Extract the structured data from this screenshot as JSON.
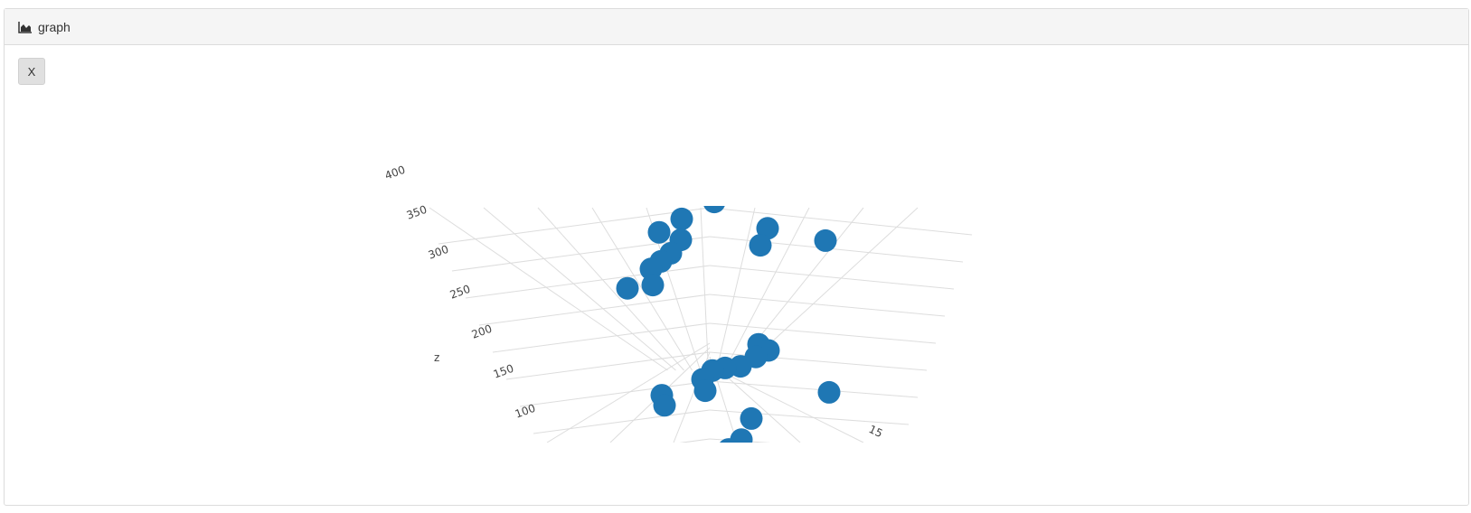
{
  "header": {
    "title": "graph",
    "icon": "area-chart-icon"
  },
  "controls": {
    "close_label": "X"
  },
  "chart_data": {
    "type": "scatter3d",
    "marker_color": "#1f77b4",
    "grid": true,
    "z_axis": {
      "label": "z",
      "ticks": [
        "100",
        "150",
        "200",
        "250",
        "300",
        "350",
        "400"
      ]
    },
    "y_axis": {
      "label": "",
      "ticks": [
        "15"
      ]
    },
    "points": [
      {
        "x": 4,
        "y": 6,
        "z": 410
      },
      {
        "x": 8,
        "y": 7,
        "z": 395
      },
      {
        "x": 5,
        "y": 9,
        "z": 380
      },
      {
        "x": 3,
        "y": 10,
        "z": 365
      },
      {
        "x": 12,
        "y": 8,
        "z": 360
      },
      {
        "x": 11,
        "y": 10,
        "z": 345
      },
      {
        "x": 17,
        "y": 6,
        "z": 330
      },
      {
        "x": 6,
        "y": 4,
        "z": 320
      },
      {
        "x": 5,
        "y": 5,
        "z": 305
      },
      {
        "x": 4,
        "y": 6,
        "z": 298
      },
      {
        "x": 3,
        "y": 7,
        "z": 292
      },
      {
        "x": 2,
        "y": 3,
        "z": 240
      },
      {
        "x": 4,
        "y": 3,
        "z": 245
      },
      {
        "x": 10,
        "y": 14,
        "z": 215
      },
      {
        "x": 11,
        "y": 13,
        "z": 200
      },
      {
        "x": 10,
        "y": 13,
        "z": 190
      },
      {
        "x": 9,
        "y": 12,
        "z": 170
      },
      {
        "x": 8,
        "y": 11,
        "z": 162
      },
      {
        "x": 7,
        "y": 11,
        "z": 158
      },
      {
        "x": 6,
        "y": 12,
        "z": 150
      },
      {
        "x": 6,
        "y": 13,
        "z": 138
      },
      {
        "x": 3,
        "y": 11,
        "z": 120
      },
      {
        "x": 3,
        "y": 12,
        "z": 110
      },
      {
        "x": 16,
        "y": 12,
        "z": 130
      },
      {
        "x": 9,
        "y": 16,
        "z": 112
      },
      {
        "x": 8,
        "y": 17,
        "z": 85
      },
      {
        "x": 7,
        "y": 17,
        "z": 70
      }
    ]
  }
}
